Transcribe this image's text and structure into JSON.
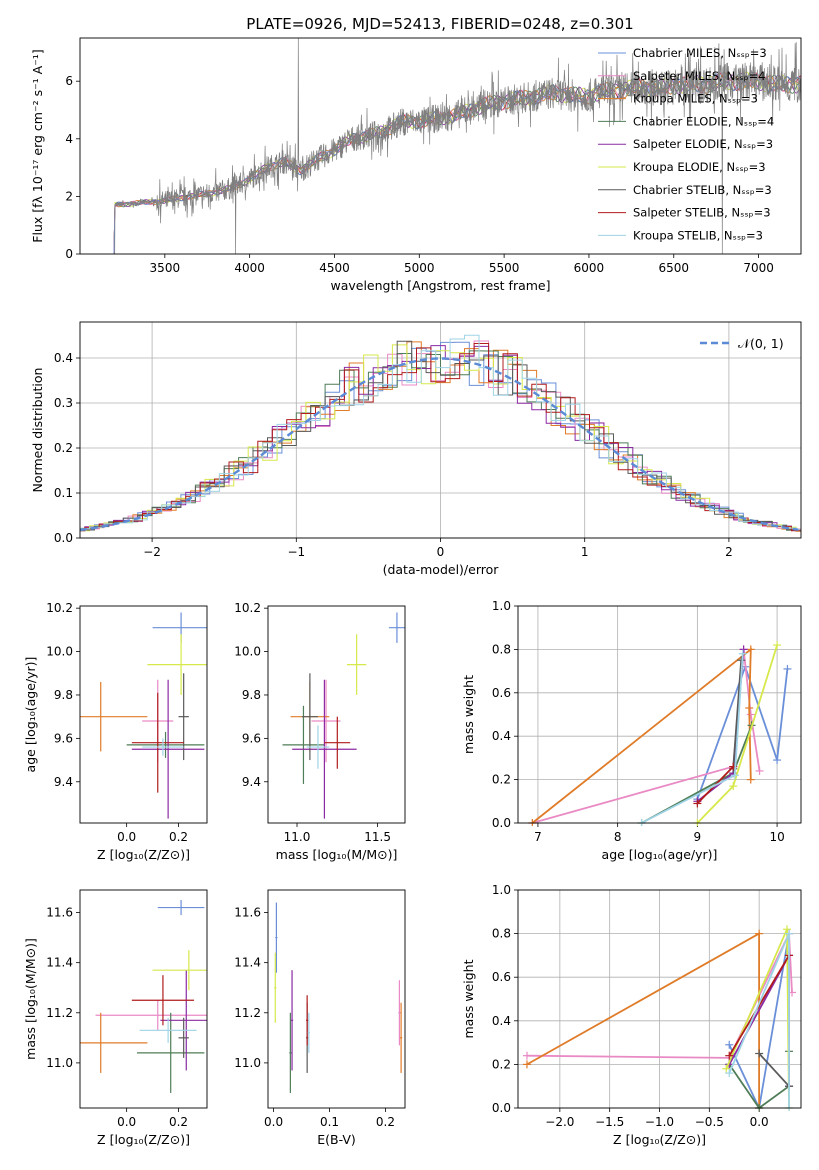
{
  "title": "PLATE=0926, MJD=52413, FIBERID=0248, z=0.301",
  "legend_colors": [
    "#6a8fd8",
    "#e98ac5",
    "#e07b28",
    "#4f7d57",
    "#8b2aa3",
    "#d6e84a",
    "#5a5a5a",
    "#b01c1c",
    "#9fd3e6"
  ],
  "chart_data": [
    {
      "id": "spectrum",
      "type": "line",
      "title": "PLATE=0926, MJD=52413, FIBERID=0248, z=0.301",
      "xlabel": "wavelength [Angstrom, rest frame]",
      "ylabel": "Flux [fλ 10⁻¹⁷ erg cm⁻² s⁻¹ A⁻¹]",
      "xlim": [
        3000,
        7250
      ],
      "ylim": [
        0,
        7.5
      ],
      "xticks": [
        "3500",
        "4000",
        "4500",
        "5000",
        "5500",
        "6000",
        "6500",
        "7000"
      ],
      "yticks": [
        "0",
        "2",
        "4",
        "6"
      ],
      "grid": false,
      "legend_position": "upper-right",
      "legend": [
        "Chabrier MILES, Nₛₛₚ=3",
        "Salpeter MILES, Nₛₛₚ=4",
        "Kroupa MILES, Nₛₛₚ=3",
        "Chabrier ELODIE, Nₛₛₚ=4",
        "Salpeter ELODIE, Nₛₛₚ=3",
        "Kroupa ELODIE, Nₛₛₚ=3",
        "Chabrier STELIB, Nₛₛₚ=3",
        "Salpeter STELIB, Nₛₛₚ=3",
        "Kroupa STELIB, Nₛₛₚ=3"
      ],
      "continuum": {
        "x": [
          3200,
          3300,
          3400,
          3500,
          3600,
          3700,
          3800,
          3900,
          4000,
          4100,
          4200,
          4300,
          4400,
          4500,
          4600,
          4700,
          4800,
          4900,
          5000,
          5100,
          5200,
          5300,
          5400,
          5500,
          5600,
          5700,
          5800,
          5900,
          6000,
          6100,
          6200,
          6300,
          6400,
          6500,
          6600,
          6700,
          6800,
          6900,
          7000,
          7100,
          7200
        ],
        "y": [
          1.7,
          1.75,
          1.8,
          1.85,
          1.95,
          2.05,
          2.15,
          2.3,
          2.6,
          3.0,
          3.2,
          2.9,
          3.3,
          3.6,
          4.0,
          4.1,
          4.3,
          4.6,
          4.6,
          4.7,
          4.8,
          5.0,
          5.2,
          5.3,
          5.4,
          5.5,
          5.6,
          5.5,
          5.5,
          5.65,
          5.7,
          5.8,
          5.75,
          5.85,
          5.9,
          5.9,
          6.0,
          6.0,
          6.0,
          5.9,
          5.9
        ]
      }
    },
    {
      "id": "residuals",
      "type": "step",
      "xlabel": "(data-model)/error",
      "ylabel": "Normed distribution",
      "xlim": [
        -2.5,
        2.5
      ],
      "ylim": [
        0,
        0.48
      ],
      "xticks": [
        "−2",
        "−1",
        "0",
        "1",
        "2"
      ],
      "yticks": [
        "0.0",
        "0.1",
        "0.2",
        "0.3",
        "0.4"
      ],
      "grid": true,
      "legend": [
        "𝒩(0, 1)"
      ],
      "legend_position": "upper-right",
      "bin_width": 0.1
    },
    {
      "id": "age_vs_Z",
      "type": "errorbar",
      "xlabel": "Z [log₁₀(Z/Z⊙)]",
      "ylabel": "age  [log₁₀(age/yr)]",
      "xlim": [
        -0.18,
        0.31
      ],
      "ylim": [
        9.21,
        10.21
      ],
      "xticks": [
        "0.0",
        "0.2"
      ],
      "yticks": [
        "9.4",
        "9.6",
        "9.8",
        "10.0",
        "10.2"
      ],
      "points": [
        {
          "x": 0.21,
          "xerr": 0.11,
          "y": 10.11,
          "yerr": 0.07,
          "c": 0
        },
        {
          "x": 0.12,
          "xerr": 0.06,
          "y": 9.68,
          "yerr": 0.19,
          "c": 1
        },
        {
          "x": -0.1,
          "xerr": 0.18,
          "y": 9.7,
          "yerr": 0.16,
          "c": 2
        },
        {
          "x": 0.15,
          "xerr": 0.15,
          "y": 9.57,
          "yerr": 0.06,
          "c": 3
        },
        {
          "x": 0.16,
          "xerr": 0.14,
          "y": 9.55,
          "yerr": 0.32,
          "c": 4
        },
        {
          "x": 0.21,
          "xerr": 0.13,
          "y": 9.94,
          "yerr": 0.14,
          "c": 5
        },
        {
          "x": 0.22,
          "xerr": 0.02,
          "y": 9.7,
          "yerr": 0.2,
          "c": 6
        },
        {
          "x": 0.12,
          "xerr": 0.1,
          "y": 9.58,
          "yerr": 0.23,
          "c": 7
        },
        {
          "x": 0.14,
          "xerr": 0.08,
          "y": 9.56,
          "yerr": 0.04,
          "c": 8
        }
      ]
    },
    {
      "id": "age_vs_mass",
      "type": "errorbar",
      "xlabel": "mass [log₁₀(M/M⊙)]",
      "ylabel": "",
      "xlim": [
        10.82,
        11.67
      ],
      "ylim": [
        9.21,
        10.21
      ],
      "xticks": [
        "11.0",
        "11.5"
      ],
      "yticks": [
        "9.4",
        "9.6",
        "9.8",
        "10.0",
        "10.2"
      ],
      "points": [
        {
          "x": 11.62,
          "xerr": 0.05,
          "y": 10.11,
          "yerr": 0.07,
          "c": 0
        },
        {
          "x": 11.18,
          "xerr": 0.09,
          "y": 9.68,
          "yerr": 0.19,
          "c": 1
        },
        {
          "x": 11.08,
          "xerr": 0.12,
          "y": 9.7,
          "yerr": 0.16,
          "c": 2
        },
        {
          "x": 11.04,
          "xerr": 0.13,
          "y": 9.57,
          "yerr": 0.18,
          "c": 3
        },
        {
          "x": 11.17,
          "xerr": 0.2,
          "y": 9.55,
          "yerr": 0.32,
          "c": 4
        },
        {
          "x": 11.37,
          "xerr": 0.06,
          "y": 9.94,
          "yerr": 0.14,
          "c": 5
        },
        {
          "x": 11.08,
          "xerr": 0.05,
          "y": 9.7,
          "yerr": 0.2,
          "c": 6
        },
        {
          "x": 11.25,
          "xerr": 0.08,
          "y": 9.58,
          "yerr": 0.12,
          "c": 7
        },
        {
          "x": 11.13,
          "xerr": 0.07,
          "y": 9.56,
          "yerr": 0.1,
          "c": 8
        }
      ]
    },
    {
      "id": "weight_vs_age",
      "type": "line",
      "xlabel": "age  [log₁₀(age/yr)]",
      "ylabel": "mass weight",
      "xlim": [
        6.75,
        10.3
      ],
      "ylim": [
        0,
        1
      ],
      "xticks": [
        "7",
        "8",
        "9",
        "10"
      ],
      "yticks": [
        "0.0",
        "0.2",
        "0.4",
        "0.6",
        "0.8",
        "1.0"
      ],
      "grid": true,
      "series": [
        {
          "c": 0,
          "x": [
            9.0,
            9.6,
            10.0,
            10.13
          ],
          "y": [
            0.11,
            0.72,
            0.29,
            0.71
          ]
        },
        {
          "c": 1,
          "x": [
            6.93,
            9.45,
            9.58,
            9.67,
            9.78
          ],
          "y": [
            0.0,
            0.26,
            0.8,
            0.5,
            0.24
          ]
        },
        {
          "c": 2,
          "x": [
            6.93,
            9.67,
            9.65,
            9.67
          ],
          "y": [
            0.0,
            0.8,
            0.53,
            0.2
          ]
        },
        {
          "c": 3,
          "x": [
            8.3,
            9.45,
            9.68
          ],
          "y": [
            0.0,
            0.23,
            0.45
          ]
        },
        {
          "c": 4,
          "x": [
            9.0,
            9.45,
            9.58
          ],
          "y": [
            0.1,
            0.23,
            0.8
          ]
        },
        {
          "c": 5,
          "x": [
            9.0,
            9.45,
            10.0
          ],
          "y": [
            0.0,
            0.17,
            0.82
          ]
        },
        {
          "c": 6,
          "x": [
            9.45,
            9.55
          ],
          "y": [
            0.25,
            0.75
          ]
        },
        {
          "c": 7,
          "x": [
            9.0,
            9.45
          ],
          "y": [
            0.09,
            0.26
          ]
        },
        {
          "c": 8,
          "x": [
            8.3,
            9.47,
            9.57
          ],
          "y": [
            0.0,
            0.22,
            0.78
          ]
        }
      ]
    },
    {
      "id": "mass_vs_Z",
      "type": "errorbar",
      "xlabel": "Z [log₁₀(Z/Z⊙)]",
      "ylabel": "mass [log₁₀(M/M⊙)]",
      "xlim": [
        -0.18,
        0.31
      ],
      "ylim": [
        10.82,
        11.69
      ],
      "xticks": [
        "0.0",
        "0.2"
      ],
      "yticks": [
        "11.0",
        "11.2",
        "11.4",
        "11.6"
      ],
      "points": [
        {
          "x": 0.21,
          "xerr": 0.09,
          "y": 11.62,
          "yerr": 0.03,
          "c": 0
        },
        {
          "x": 0.12,
          "xerr": 0.24,
          "y": 11.19,
          "yerr": 0.06,
          "c": 1
        },
        {
          "x": -0.1,
          "xerr": 0.18,
          "y": 11.08,
          "yerr": 0.12,
          "c": 2
        },
        {
          "x": 0.17,
          "xerr": 0.13,
          "y": 11.04,
          "yerr": 0.16,
          "c": 3
        },
        {
          "x": 0.23,
          "xerr": 0.1,
          "y": 11.17,
          "yerr": 0.2,
          "c": 4
        },
        {
          "x": 0.24,
          "xerr": 0.14,
          "y": 11.37,
          "yerr": 0.08,
          "c": 5
        },
        {
          "x": 0.22,
          "xerr": 0.02,
          "y": 11.1,
          "yerr": 0.08,
          "c": 6
        },
        {
          "x": 0.14,
          "xerr": 0.12,
          "y": 11.25,
          "yerr": 0.1,
          "c": 7
        },
        {
          "x": 0.16,
          "xerr": 0.11,
          "y": 11.13,
          "yerr": 0.05,
          "c": 8
        }
      ]
    },
    {
      "id": "mass_vs_EBV",
      "type": "errorbar",
      "xlabel": "E(B-V)",
      "ylabel": "",
      "xlim": [
        -0.01,
        0.235
      ],
      "ylim": [
        10.82,
        11.69
      ],
      "xticks": [
        "0.0",
        "0.1",
        "0.2"
      ],
      "yticks": [
        "11.0",
        "11.2",
        "11.4",
        "11.6"
      ],
      "points": [
        {
          "x": 0.005,
          "xerr": 0.002,
          "y": 11.5,
          "yerr": 0.14,
          "c": 0
        },
        {
          "x": 0.225,
          "xerr": 0.002,
          "y": 11.2,
          "yerr": 0.13,
          "c": 1
        },
        {
          "x": 0.228,
          "xerr": 0.002,
          "y": 11.1,
          "yerr": 0.14,
          "c": 2
        },
        {
          "x": 0.03,
          "xerr": 0.002,
          "y": 11.04,
          "yerr": 0.16,
          "c": 3
        },
        {
          "x": 0.033,
          "xerr": 0.002,
          "y": 11.17,
          "yerr": 0.2,
          "c": 4
        },
        {
          "x": 0.003,
          "xerr": 0.002,
          "y": 11.3,
          "yerr": 0.14,
          "c": 5
        },
        {
          "x": 0.06,
          "xerr": 0.002,
          "y": 11.1,
          "yerr": 0.14,
          "c": 6
        },
        {
          "x": 0.06,
          "xerr": 0.002,
          "y": 11.17,
          "yerr": 0.1,
          "c": 7
        },
        {
          "x": 0.063,
          "xerr": 0.002,
          "y": 11.12,
          "yerr": 0.08,
          "c": 8
        }
      ]
    },
    {
      "id": "weight_vs_Z",
      "type": "line",
      "xlabel": "Z [log₁₀(Z/Z⊙)]",
      "ylabel": "mass weight",
      "xlim": [
        -2.42,
        0.42
      ],
      "ylim": [
        0,
        1
      ],
      "xticks": [
        "−2.0",
        "−1.5",
        "−1.0",
        "−0.5",
        "0.0"
      ],
      "yticks": [
        "0.0",
        "0.2",
        "0.4",
        "0.6",
        "0.8",
        "1.0"
      ],
      "grid": true,
      "series": [
        {
          "c": 0,
          "x": [
            -0.3,
            0.0,
            0.3
          ],
          "y": [
            0.29,
            0.0,
            0.8
          ]
        },
        {
          "c": 1,
          "x": [
            -2.33,
            -0.3,
            0.3,
            0.33
          ],
          "y": [
            0.24,
            0.23,
            0.8,
            0.53
          ]
        },
        {
          "c": 2,
          "x": [
            -2.33,
            0.0,
            0.0
          ],
          "y": [
            0.2,
            0.8,
            0.0
          ]
        },
        {
          "c": 3,
          "x": [
            -0.3,
            0.0,
            0.3,
            0.3
          ],
          "y": [
            0.2,
            0.0,
            0.1,
            0.26
          ]
        },
        {
          "c": 4,
          "x": [
            -0.3,
            0.3,
            0.3
          ],
          "y": [
            0.2,
            0.7,
            0.1
          ]
        },
        {
          "c": 5,
          "x": [
            -0.33,
            0.28,
            0.3
          ],
          "y": [
            0.18,
            0.82,
            0.0
          ]
        },
        {
          "c": 6,
          "x": [
            0.0,
            0.3
          ],
          "y": [
            0.25,
            0.1
          ]
        },
        {
          "c": 7,
          "x": [
            -0.3,
            0.3
          ],
          "y": [
            0.24,
            0.7
          ]
        },
        {
          "c": 8,
          "x": [
            -0.3,
            0.3,
            0.3
          ],
          "y": [
            0.16,
            0.8,
            0.0
          ]
        }
      ]
    }
  ]
}
